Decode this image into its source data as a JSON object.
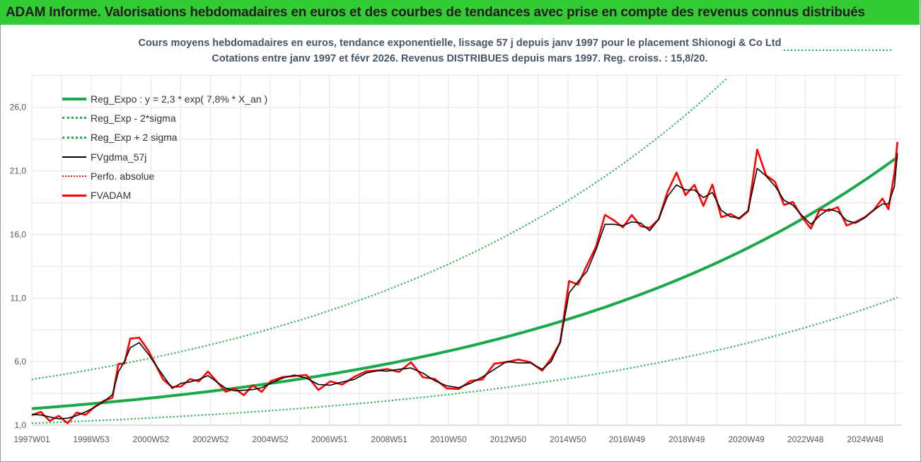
{
  "banner_title": "ADAM Informe. Valorisations hebdomadaires en euros et des courbes de tendances avec prise en compte des revenus connus distribués",
  "chart_title_line1": "Cours moyens hebdomadaires en euros, tendance exponentielle, lissage 57 j depuis janv 1997 pour le placement Shionogi & Co Ltd",
  "chart_title_line2": "Cotations entre janv 1997 et févr 2026. Revenus DISTRIBUES depuis mars 1997. Reg. croiss. : 15,8/20.",
  "colors": {
    "banner": "#33cc33",
    "reg_expo": "#1aa84a",
    "sigma": "#22b14c",
    "fvgdma": "#000000",
    "perfo": "#e81010",
    "fvadam": "#ff0000",
    "title_text": "#44546a"
  },
  "chart_data": {
    "type": "line",
    "xlim": [
      1997.0,
      2026.15
    ],
    "ylim": [
      1.0,
      28.6
    ],
    "grid": true,
    "legend_placement": "top-left",
    "y_ticks": [
      1.0,
      6.0,
      11.0,
      16.0,
      21.0,
      26.0
    ],
    "y_tick_labels": [
      "1,0",
      "6,0",
      "11,0",
      "16,0",
      "21,0",
      "26,0"
    ],
    "x_tick_positions": [
      1997.0,
      1998.99,
      2000.99,
      2002.99,
      2004.99,
      2006.97,
      2008.97,
      2010.96,
      2012.96,
      2014.96,
      2016.94,
      2018.94,
      2020.94,
      2022.92,
      2024.92
    ],
    "x_tick_labels": [
      "1997W01",
      "1998W53",
      "2000W52",
      "2002W52",
      "2004W52",
      "2006W51",
      "2008W51",
      "2010W50",
      "2012W50",
      "2014W50",
      "2016W49",
      "2018W49",
      "2020W49",
      "2022W48",
      "2024W48"
    ],
    "regression": {
      "a": 2.3,
      "rate": 0.078,
      "sigma_factor": 2.0
    },
    "series": [
      {
        "name": "Reg_Expo : y = 2,3 * exp( 7,8% *  X_an )",
        "kind": "reg"
      },
      {
        "name": "Reg_Exp - 2*sigma",
        "kind": "lower"
      },
      {
        "name": "Reg_Exp + 2 sigma",
        "kind": "upper"
      },
      {
        "name": "FVgdma_57j",
        "kind": "smooth"
      },
      {
        "name": "Perfo. absolue",
        "kind": "perfo"
      },
      {
        "name": "FVADAM",
        "kind": "raw",
        "x": [
          1997.0,
          1997.3,
          1997.6,
          1997.9,
          1998.2,
          1998.5,
          1998.8,
          1999.1,
          1999.4,
          1999.7,
          1999.9,
          2000.1,
          2000.3,
          2000.6,
          2000.9,
          2001.1,
          2001.4,
          2001.7,
          2002.0,
          2002.3,
          2002.6,
          2002.9,
          2003.2,
          2003.5,
          2003.8,
          2004.1,
          2004.4,
          2004.7,
          2005.0,
          2005.4,
          2005.8,
          2006.2,
          2006.6,
          2007.0,
          2007.4,
          2007.8,
          2008.2,
          2008.6,
          2008.9,
          2009.3,
          2009.7,
          2010.1,
          2010.5,
          2010.9,
          2011.3,
          2011.7,
          2012.1,
          2012.5,
          2012.9,
          2013.3,
          2013.7,
          2014.1,
          2014.4,
          2014.7,
          2015.0,
          2015.3,
          2015.6,
          2015.9,
          2016.2,
          2016.5,
          2016.8,
          2017.1,
          2017.4,
          2017.7,
          2018.0,
          2018.3,
          2018.6,
          2018.9,
          2019.2,
          2019.5,
          2019.8,
          2020.1,
          2020.4,
          2020.7,
          2021.0,
          2021.3,
          2021.6,
          2021.9,
          2022.2,
          2022.5,
          2022.8,
          2023.1,
          2023.4,
          2023.7,
          2024.0,
          2024.3,
          2024.6,
          2024.9,
          2025.2,
          2025.5,
          2025.7,
          2025.9,
          2026.0
        ],
        "y": [
          1.8,
          1.9,
          1.6,
          1.4,
          1.5,
          1.7,
          2.0,
          2.4,
          2.8,
          3.4,
          5.5,
          6.2,
          7.5,
          8.1,
          6.8,
          5.9,
          4.8,
          3.7,
          4.4,
          4.3,
          4.7,
          5.1,
          4.4,
          3.8,
          3.6,
          3.7,
          3.8,
          3.9,
          4.3,
          4.8,
          5.0,
          4.7,
          4.1,
          4.1,
          4.5,
          4.6,
          5.3,
          5.4,
          5.2,
          5.5,
          5.6,
          5.1,
          4.4,
          4.0,
          3.9,
          4.3,
          4.9,
          5.5,
          6.3,
          5.9,
          6.1,
          5.3,
          6.1,
          7.8,
          12.0,
          12.4,
          13.3,
          15.2,
          17.5,
          17.0,
          16.8,
          17.2,
          17.0,
          16.2,
          17.4,
          19.3,
          20.8,
          19.3,
          19.6,
          18.6,
          19.6,
          17.6,
          17.5,
          17.2,
          18.0,
          22.4,
          21.0,
          19.8,
          18.6,
          18.4,
          17.4,
          16.6,
          17.7,
          18.2,
          17.8,
          17.0,
          16.8,
          17.4,
          18.0,
          18.6,
          18.3,
          20.5,
          23.6
        ],
        "y_smooth": [
          1.85,
          1.8,
          1.65,
          1.5,
          1.55,
          1.75,
          2.05,
          2.4,
          2.85,
          3.4,
          5.2,
          6.0,
          7.1,
          7.5,
          6.6,
          5.9,
          4.9,
          3.9,
          4.3,
          4.4,
          4.6,
          4.9,
          4.4,
          3.9,
          3.7,
          3.75,
          3.8,
          3.95,
          4.3,
          4.7,
          4.95,
          4.7,
          4.2,
          4.15,
          4.4,
          4.6,
          5.1,
          5.3,
          5.25,
          5.4,
          5.5,
          5.1,
          4.5,
          4.1,
          3.95,
          4.3,
          4.8,
          5.4,
          6.0,
          5.9,
          5.9,
          5.4,
          6.0,
          7.5,
          11.4,
          12.3,
          13.1,
          14.8,
          16.8,
          16.8,
          16.7,
          17.0,
          16.9,
          16.3,
          17.2,
          19.0,
          19.9,
          19.5,
          19.5,
          18.9,
          19.3,
          17.9,
          17.4,
          17.3,
          17.9,
          21.2,
          20.6,
          19.8,
          18.7,
          18.3,
          17.5,
          16.8,
          17.5,
          18.0,
          17.8,
          17.1,
          16.9,
          17.3,
          17.9,
          18.4,
          18.4,
          19.8,
          22.4
        ]
      }
    ]
  }
}
